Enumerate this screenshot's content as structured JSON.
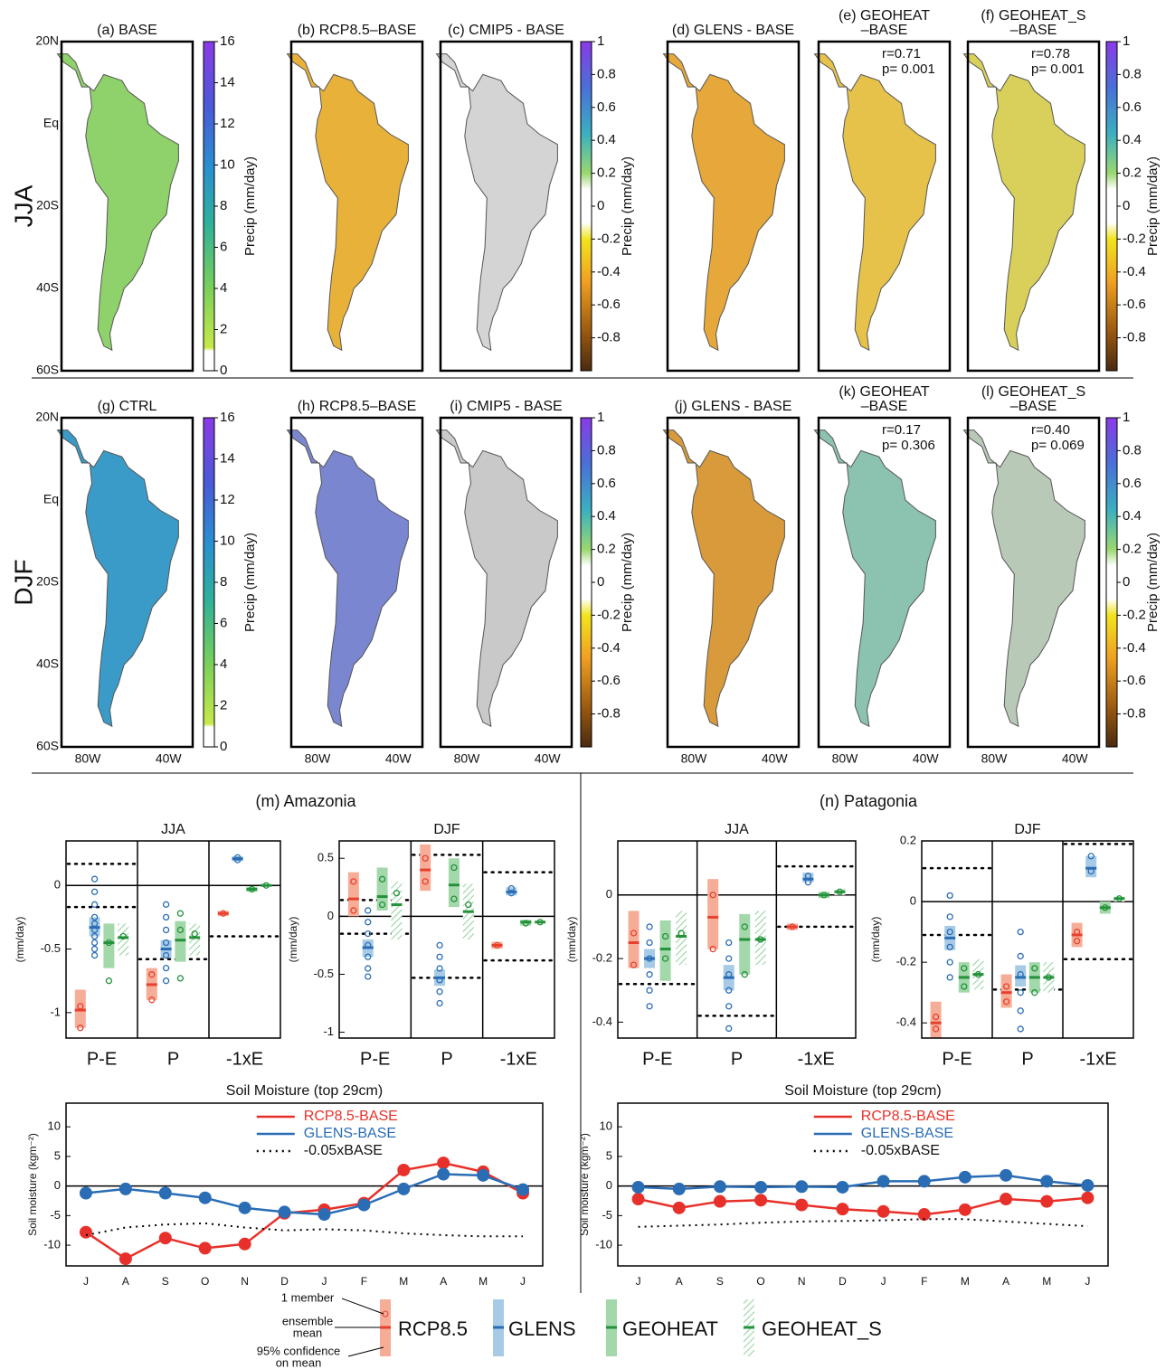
{
  "maps": {
    "xlim": [
      -93,
      -28
    ],
    "ylim": [
      -60,
      20
    ],
    "lat_ticks": [
      {
        "value": 20,
        "label": "20N"
      },
      {
        "value": 0,
        "label": "Eq"
      },
      {
        "value": -20,
        "label": "20S"
      },
      {
        "value": -40,
        "label": "40S"
      },
      {
        "value": -60,
        "label": "60S"
      }
    ],
    "lon_ticks": [
      {
        "value": -80,
        "label": "80W"
      },
      {
        "value": -40,
        "label": "40W"
      }
    ],
    "colorbars": {
      "absolute": {
        "label": "Precip (mm/day)",
        "lim": [
          0,
          16
        ],
        "ticks": [
          0,
          2,
          4,
          6,
          8,
          10,
          12,
          14,
          16
        ]
      },
      "difference": {
        "label": "Precip (mm/day)",
        "lim": [
          -1,
          1
        ],
        "ticks": [
          1,
          0.8,
          0.6,
          0.4,
          0.2,
          0,
          -0.2,
          -0.4,
          -0.6,
          -0.8
        ]
      }
    },
    "rows": [
      {
        "label": "JJA",
        "panels": [
          {
            "title": [
              "(a) BASE"
            ]
          },
          {
            "title": [
              "(b) RCP8.5–BASE"
            ]
          },
          {
            "title": [
              "(c) CMIP5 - BASE"
            ]
          },
          {
            "title": [
              "(d) GLENS - BASE"
            ]
          },
          {
            "title": [
              "(e) GEOHEAT",
              "–BASE"
            ],
            "stats": [
              "r=0.71",
              "p= 0.001"
            ]
          },
          {
            "title": [
              "(f) GEOHEAT_S",
              "–BASE"
            ],
            "stats": [
              "r=0.78",
              "p= 0.001"
            ]
          }
        ]
      },
      {
        "label": "DJF",
        "panels": [
          {
            "title": [
              "(g) CTRL"
            ]
          },
          {
            "title": [
              "(h) RCP8.5–BASE"
            ]
          },
          {
            "title": [
              "(i) CMIP5 - BASE"
            ]
          },
          {
            "title": [
              "(j) GLENS - BASE"
            ]
          },
          {
            "title": [
              "(k) GEOHEAT",
              "–BASE"
            ],
            "stats": [
              "r=0.17",
              "p= 0.306"
            ]
          },
          {
            "title": [
              "(l) GEOHEAT_S",
              "–BASE"
            ],
            "stats": [
              "r=0.40",
              "p= 0.069"
            ]
          }
        ]
      }
    ]
  },
  "section_titles": [
    "(m) Amazonia",
    "(n) Patagonia"
  ],
  "legend": {
    "member": "1 member",
    "mean": [
      "ensemble",
      "mean"
    ],
    "ci": [
      "95% confidence",
      "on mean"
    ]
  },
  "chart_data": [
    {
      "type": "strip",
      "title": "JJA",
      "ylabel": "(mm/day)",
      "categories": [
        "P-E",
        "P",
        "-1xE"
      ],
      "ylim": [
        -1.2,
        0.35
      ],
      "yticks": [
        0,
        -0.5,
        -1
      ],
      "thresholds": [
        [
          0.17,
          -0.17
        ],
        [
          -0.58
        ],
        [
          -0.4
        ]
      ],
      "series": [
        {
          "name": "RCP8.5",
          "color": "#e8402f",
          "ci_color": "#f6ad97",
          "values": [
            -0.98,
            -0.78,
            -0.22
          ],
          "ci": [
            [
              -1.12,
              -0.82
            ],
            [
              -0.9,
              -0.65
            ],
            [
              -0.24,
              -0.2
            ]
          ],
          "members": [
            [
              -0.95,
              -1.12
            ],
            [
              -0.7,
              -0.9
            ],
            [
              -0.22
            ]
          ]
        },
        {
          "name": "GLENS",
          "color": "#2a6db5",
          "ci_color": "#a7cbe6",
          "values": [
            -0.33,
            -0.5,
            0.21
          ],
          "ci": [
            [
              -0.4,
              -0.25
            ],
            [
              -0.57,
              -0.43
            ],
            [
              0.19,
              0.23
            ]
          ],
          "members": [
            [
              0.05,
              -0.05,
              -0.15,
              -0.25,
              -0.3,
              -0.35,
              -0.4,
              -0.45,
              -0.5,
              -0.55
            ],
            [
              -0.15,
              -0.25,
              -0.35,
              -0.45,
              -0.55,
              -0.65,
              -0.75
            ],
            [
              0.2,
              0.22
            ]
          ]
        },
        {
          "name": "GEOHEAT",
          "color": "#23923a",
          "ci_color": "#a3d8aa",
          "values": [
            -0.45,
            -0.43,
            -0.03
          ],
          "ci": [
            [
              -0.65,
              -0.3
            ],
            [
              -0.6,
              -0.28
            ],
            [
              -0.05,
              -0.01
            ]
          ],
          "members": [
            [
              -0.45,
              -0.75
            ],
            [
              -0.22,
              -0.35,
              -0.73
            ],
            [
              -0.03
            ]
          ]
        },
        {
          "name": "GEOHEAT_S",
          "color": "#23923a",
          "ci_color": "#a3d8aa",
          "hatch": true,
          "values": [
            -0.41,
            -0.41,
            0
          ],
          "ci": [
            [
              -0.55,
              -0.3
            ],
            [
              -0.55,
              -0.3
            ],
            [
              -0.01,
              0.01
            ]
          ],
          "members": [
            [
              -0.4
            ],
            [
              -0.38
            ],
            [
              0
            ]
          ]
        }
      ]
    },
    {
      "type": "strip",
      "title": "DJF",
      "ylabel": "(mm/day)",
      "categories": [
        "P-E",
        "P",
        "-1xE"
      ],
      "ylim": [
        -1.05,
        0.65
      ],
      "yticks": [
        0.5,
        0,
        -0.5,
        -1
      ],
      "thresholds": [
        [
          0.14,
          -0.15
        ],
        [
          0.53,
          -0.53
        ],
        [
          0.38,
          -0.38
        ]
      ],
      "series": [
        {
          "name": "RCP8.5",
          "color": "#e8402f",
          "ci_color": "#f6ad97",
          "values": [
            0.15,
            0.4,
            -0.25
          ],
          "ci": [
            [
              0,
              0.38
            ],
            [
              0.22,
              0.62
            ],
            [
              -0.28,
              -0.22
            ]
          ],
          "members": [
            [
              0.3,
              0.05
            ],
            [
              0.5,
              0.3
            ],
            [
              -0.25
            ]
          ]
        },
        {
          "name": "GLENS",
          "color": "#2a6db5",
          "ci_color": "#a7cbe6",
          "values": [
            -0.27,
            -0.53,
            0.21
          ],
          "ci": [
            [
              -0.35,
              -0.2
            ],
            [
              -0.6,
              -0.46
            ],
            [
              0.18,
              0.25
            ]
          ],
          "members": [
            [
              0.05,
              -0.05,
              -0.15,
              -0.25,
              -0.35,
              -0.45,
              -0.52
            ],
            [
              -0.25,
              -0.35,
              -0.45,
              -0.55,
              -0.65,
              -0.75
            ],
            [
              0.2,
              0.24
            ]
          ]
        },
        {
          "name": "GEOHEAT",
          "color": "#23923a",
          "ci_color": "#a3d8aa",
          "values": [
            0.17,
            0.27,
            -0.05
          ],
          "ci": [
            [
              0.05,
              0.42
            ],
            [
              0.08,
              0.5
            ],
            [
              -0.08,
              -0.03
            ]
          ],
          "members": [
            [
              0.32,
              0.1
            ],
            [
              0.42,
              0.15
            ],
            [
              -0.06
            ]
          ]
        },
        {
          "name": "GEOHEAT_S",
          "color": "#23923a",
          "ci_color": "#a3d8aa",
          "hatch": true,
          "values": [
            0.1,
            0.04,
            -0.05
          ],
          "ci": [
            [
              -0.2,
              0.3
            ],
            [
              -0.2,
              0.28
            ],
            [
              -0.06,
              -0.04
            ]
          ],
          "members": [
            [
              0.2
            ],
            [
              0.1
            ],
            [
              -0.05
            ]
          ]
        }
      ]
    },
    {
      "type": "strip",
      "title": "JJA",
      "ylabel": "(mm/day)",
      "categories": [
        "P-E",
        "P",
        "-1xE"
      ],
      "ylim": [
        -0.45,
        0.17
      ],
      "yticks": [
        0,
        -0.2,
        -0.4
      ],
      "thresholds": [
        [
          -0.28
        ],
        [
          -0.38
        ],
        [
          0.09,
          -0.1
        ]
      ],
      "series": [
        {
          "name": "RCP8.5",
          "color": "#e8402f",
          "ci_color": "#f6ad97",
          "values": [
            -0.15,
            -0.07,
            -0.1
          ],
          "ci": [
            [
              -0.23,
              -0.05
            ],
            [
              -0.17,
              0.05
            ],
            [
              -0.11,
              -0.09
            ]
          ],
          "members": [
            [
              -0.12,
              -0.22
            ],
            [
              0,
              -0.17
            ],
            [
              -0.1
            ]
          ]
        },
        {
          "name": "GLENS",
          "color": "#2a6db5",
          "ci_color": "#a7cbe6",
          "values": [
            -0.2,
            -0.26,
            0.05
          ],
          "ci": [
            [
              -0.23,
              -0.17
            ],
            [
              -0.3,
              -0.22
            ],
            [
              0.04,
              0.07
            ]
          ],
          "members": [
            [
              -0.1,
              -0.15,
              -0.2,
              -0.25,
              -0.3,
              -0.35
            ],
            [
              -0.15,
              -0.2,
              -0.25,
              -0.3,
              -0.35,
              -0.42
            ],
            [
              0.06,
              0.04
            ]
          ]
        },
        {
          "name": "GEOHEAT",
          "color": "#23923a",
          "ci_color": "#a3d8aa",
          "values": [
            -0.17,
            -0.14,
            0
          ],
          "ci": [
            [
              -0.27,
              -0.08
            ],
            [
              -0.25,
              -0.06
            ],
            [
              -0.01,
              0.01
            ]
          ],
          "members": [
            [
              -0.13,
              -0.2
            ],
            [
              -0.1,
              -0.25
            ],
            [
              0
            ]
          ]
        },
        {
          "name": "GEOHEAT_S",
          "color": "#23923a",
          "ci_color": "#a3d8aa",
          "hatch": true,
          "values": [
            -0.13,
            -0.14,
            0.01
          ],
          "ci": [
            [
              -0.22,
              -0.05
            ],
            [
              -0.22,
              -0.05
            ],
            [
              0,
              0.02
            ]
          ],
          "members": [
            [
              -0.12
            ],
            [
              -0.14
            ],
            [
              0.01
            ]
          ]
        }
      ]
    },
    {
      "type": "strip",
      "title": "DJF",
      "ylabel": "(mm/day)",
      "categories": [
        "P-E",
        "P",
        "-1xE"
      ],
      "ylim": [
        -0.45,
        0.2
      ],
      "yticks": [
        0.2,
        0,
        -0.2,
        -0.4
      ],
      "thresholds": [
        [
          0.11,
          -0.11
        ],
        [
          -0.29
        ],
        [
          0.19,
          -0.19
        ]
      ],
      "series": [
        {
          "name": "RCP8.5",
          "color": "#e8402f",
          "ci_color": "#f6ad97",
          "values": [
            -0.4,
            -0.3,
            -0.11
          ],
          "ci": [
            [
              -0.45,
              -0.33
            ],
            [
              -0.35,
              -0.24
            ],
            [
              -0.15,
              -0.07
            ]
          ],
          "members": [
            [
              -0.38,
              -0.42
            ],
            [
              -0.28,
              -0.33
            ],
            [
              -0.1,
              -0.13
            ]
          ]
        },
        {
          "name": "GLENS",
          "color": "#2a6db5",
          "ci_color": "#a7cbe6",
          "values": [
            -0.12,
            -0.25,
            0.11
          ],
          "ci": [
            [
              -0.16,
              -0.08
            ],
            [
              -0.28,
              -0.21
            ],
            [
              0.08,
              0.15
            ]
          ],
          "members": [
            [
              0.02,
              -0.05,
              -0.1,
              -0.15,
              -0.2,
              -0.25
            ],
            [
              -0.1,
              -0.18,
              -0.24,
              -0.3,
              -0.36,
              -0.42
            ],
            [
              0.15,
              0.1
            ]
          ]
        },
        {
          "name": "GEOHEAT",
          "color": "#23923a",
          "ci_color": "#a3d8aa",
          "values": [
            -0.25,
            -0.25,
            -0.02
          ],
          "ci": [
            [
              -0.3,
              -0.2
            ],
            [
              -0.3,
              -0.2
            ],
            [
              -0.04,
              0
            ]
          ],
          "members": [
            [
              -0.22,
              -0.28
            ],
            [
              -0.22,
              -0.3
            ],
            [
              -0.02
            ]
          ]
        },
        {
          "name": "GEOHEAT_S",
          "color": "#23923a",
          "ci_color": "#a3d8aa",
          "hatch": true,
          "values": [
            -0.24,
            -0.25,
            0.01
          ],
          "ci": [
            [
              -0.29,
              -0.19
            ],
            [
              -0.3,
              -0.2
            ],
            [
              0,
              0.02
            ]
          ],
          "members": [
            [
              -0.24
            ],
            [
              -0.25
            ],
            [
              0.01
            ]
          ]
        }
      ]
    },
    {
      "type": "line",
      "title": "Soil Moisture (top 29cm)",
      "ylabel": "Soil moisture (kgm⁻²)",
      "categories": [
        "J",
        "A",
        "S",
        "O",
        "N",
        "D",
        "J",
        "F",
        "M",
        "A",
        "M",
        "J"
      ],
      "ylim": [
        -13.5,
        14
      ],
      "yticks": [
        10,
        5,
        0,
        -5,
        -10
      ],
      "series": [
        {
          "name": "RCP8.5-BASE",
          "color": "#e8302a",
          "markers": true,
          "values": [
            -7.8,
            -12.3,
            -8.8,
            -10.5,
            -9.8,
            -4.6,
            -4,
            -2.9,
            2.7,
            3.9,
            2.4,
            -1.2
          ]
        },
        {
          "name": "GLENS-BASE",
          "color": "#2a6db5",
          "markers": true,
          "values": [
            -1.2,
            -0.5,
            -1.2,
            -2,
            -3.7,
            -4.4,
            -4.8,
            -3.2,
            -0.5,
            2,
            1.8,
            -0.6
          ]
        },
        {
          "name": "-0.05xBASE",
          "color": "#000000",
          "dash": true,
          "values": [
            -8.3,
            -7,
            -6.5,
            -6.3,
            -7,
            -7.5,
            -7.3,
            -7.5,
            -8,
            -8.3,
            -8.5,
            -8.5
          ]
        }
      ]
    },
    {
      "type": "line",
      "title": "Soil Moisture (top 29cm)",
      "ylabel": "Soil moisture (kgm⁻²)",
      "categories": [
        "J",
        "A",
        "S",
        "O",
        "N",
        "D",
        "J",
        "F",
        "M",
        "A",
        "M",
        "J"
      ],
      "ylim": [
        -13.5,
        14
      ],
      "yticks": [
        10,
        5,
        0,
        -5,
        -10
      ],
      "series": [
        {
          "name": "RCP8.5-BASE",
          "color": "#e8302a",
          "markers": true,
          "values": [
            -2.2,
            -3.7,
            -2.6,
            -2.4,
            -3.2,
            -3.9,
            -4.3,
            -4.8,
            -4,
            -2.2,
            -2.6,
            -2
          ]
        },
        {
          "name": "GLENS-BASE",
          "color": "#2a6db5",
          "markers": true,
          "values": [
            -0.2,
            -0.5,
            -0.1,
            -0.2,
            -0.1,
            -0.2,
            0.8,
            0.8,
            1.5,
            1.8,
            0.8,
            0.1
          ]
        },
        {
          "name": "-0.05xBASE",
          "color": "#000000",
          "dash": true,
          "values": [
            -6.9,
            -6.7,
            -6.5,
            -6.2,
            -6,
            -5.9,
            -5.8,
            -5.6,
            -5.6,
            -6,
            -6.4,
            -6.8
          ]
        }
      ]
    }
  ]
}
